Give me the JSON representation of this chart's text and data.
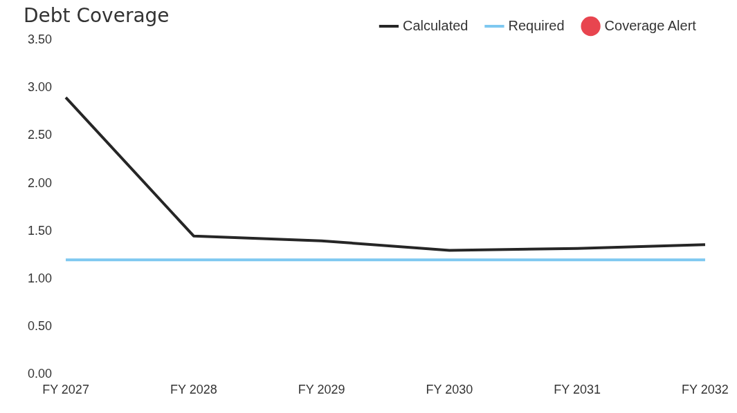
{
  "chart_data": {
    "type": "line",
    "title": "Debt Coverage",
    "categories": [
      "FY 2027",
      "FY 2028",
      "FY 2029",
      "FY 2030",
      "FY 2031",
      "FY 2032"
    ],
    "series": [
      {
        "name": "Calculated",
        "color": "#262626",
        "values": [
          2.9,
          1.45,
          1.4,
          1.3,
          1.32,
          1.36
        ]
      },
      {
        "name": "Required",
        "color": "#7ec8f0",
        "values": [
          1.2,
          1.2,
          1.2,
          1.2,
          1.2,
          1.2
        ]
      },
      {
        "name": "Coverage Alert",
        "type": "scatter",
        "color": "#e8454f",
        "values": [
          null,
          null,
          null,
          null,
          null,
          null
        ]
      }
    ],
    "ylim": [
      0,
      3.5
    ],
    "yticks": [
      {
        "value": 0,
        "label": "0.00"
      },
      {
        "value": 0.5,
        "label": "0.50"
      },
      {
        "value": 1,
        "label": "1.00"
      },
      {
        "value": 1.5,
        "label": "1.50"
      },
      {
        "value": 2,
        "label": "2.00"
      },
      {
        "value": 2.5,
        "label": "2.50"
      },
      {
        "value": 3,
        "label": "3.00"
      },
      {
        "value": 3.5,
        "label": "3.50"
      }
    ],
    "grid": false,
    "legend": "top right",
    "marker": "none",
    "line_style": "solid"
  }
}
